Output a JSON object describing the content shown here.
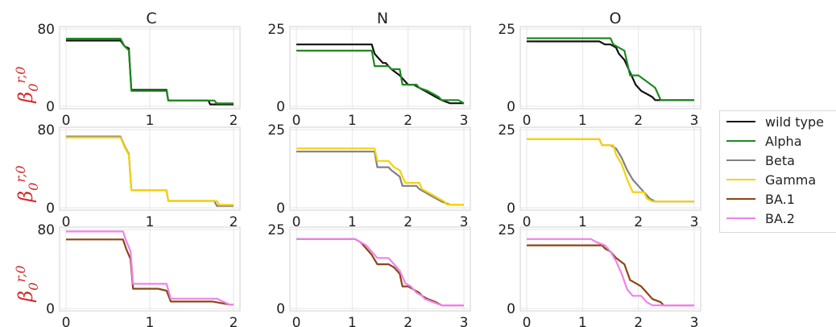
{
  "colors": {
    "wild type": "#111111",
    "Alpha": "#1e8a1e",
    "Beta": "#808080",
    "Gamma": "#f5d20a",
    "BA.1": "#8b4513",
    "BA.2": "#ee82ee",
    "ylabel": "#d62728"
  },
  "legend": {
    "entries": [
      "wild type",
      "Alpha",
      "Beta",
      "Gamma",
      "BA.1",
      "BA.2"
    ]
  },
  "column_titles": [
    "C",
    "N",
    "O"
  ],
  "chart_data": [
    {
      "type": "line",
      "row": 0,
      "col": 0,
      "title": "C",
      "ylabel": "β0^r,0",
      "xlim": [
        0,
        2
      ],
      "ylim": [
        0,
        80
      ],
      "xticks": [
        0,
        1,
        2
      ],
      "yticks": [
        0,
        80
      ],
      "grid": true,
      "series": [
        {
          "name": "wild type",
          "x": [
            0,
            0.65,
            0.7,
            0.75,
            0.78,
            1.2,
            1.22,
            1.7,
            1.72,
            2.0
          ],
          "y": [
            68,
            68,
            62,
            60,
            17,
            17,
            6,
            6,
            2,
            2
          ]
        },
        {
          "name": "Alpha",
          "x": [
            0,
            0.65,
            0.7,
            0.75,
            0.78,
            1.2,
            1.22,
            1.77,
            1.8,
            2.0
          ],
          "y": [
            70,
            70,
            62,
            58,
            16,
            16,
            6,
            6,
            3,
            3
          ]
        }
      ]
    },
    {
      "type": "line",
      "row": 0,
      "col": 1,
      "title": "N",
      "xlim": [
        0,
        3
      ],
      "ylim": [
        0,
        25
      ],
      "xticks": [
        0,
        1,
        2,
        3
      ],
      "yticks": [
        0,
        25
      ],
      "grid": true,
      "series": [
        {
          "name": "wild type",
          "x": [
            0,
            1.35,
            1.4,
            1.45,
            1.55,
            1.6,
            1.7,
            1.85,
            2.0,
            2.1,
            2.2,
            2.3,
            2.4,
            2.5,
            2.6,
            2.75,
            3.0
          ],
          "y": [
            20,
            20,
            17,
            16,
            14,
            14,
            12,
            10,
            7,
            7,
            6,
            5,
            4,
            3,
            2,
            1,
            1
          ]
        },
        {
          "name": "Alpha",
          "x": [
            0,
            1.35,
            1.4,
            1.65,
            1.7,
            1.85,
            1.9,
            2.15,
            2.2,
            2.35,
            2.45,
            2.55,
            2.6,
            2.9,
            3.0
          ],
          "y": [
            18,
            18,
            13,
            13,
            12,
            12,
            7,
            7,
            6,
            5,
            4,
            3,
            2,
            2,
            1
          ]
        }
      ]
    },
    {
      "type": "line",
      "row": 0,
      "col": 2,
      "title": "O",
      "xlim": [
        0,
        3
      ],
      "ylim": [
        0,
        25
      ],
      "xticks": [
        0,
        1,
        2,
        3
      ],
      "yticks": [
        0,
        25
      ],
      "grid": true,
      "series": [
        {
          "name": "wild type",
          "x": [
            0,
            1.3,
            1.4,
            1.5,
            1.6,
            1.65,
            1.75,
            1.85,
            1.95,
            2.05,
            2.15,
            2.25,
            2.3,
            2.7,
            3.0
          ],
          "y": [
            21,
            21,
            20,
            20,
            19,
            17,
            15,
            11,
            7,
            5,
            4,
            3,
            2,
            2,
            2
          ]
        },
        {
          "name": "Alpha",
          "x": [
            0,
            1.5,
            1.55,
            1.75,
            1.85,
            2.0,
            2.15,
            2.3,
            2.4,
            2.6,
            3.0
          ],
          "y": [
            22,
            22,
            20,
            18,
            10,
            10,
            8,
            6,
            2,
            2,
            2
          ]
        }
      ]
    },
    {
      "type": "line",
      "row": 1,
      "col": 0,
      "xlim": [
        0,
        2
      ],
      "ylim": [
        0,
        80
      ],
      "xticks": [
        0,
        1,
        2
      ],
      "yticks": [
        0,
        80
      ],
      "grid": true,
      "series": [
        {
          "name": "Beta",
          "x": [
            0,
            0.65,
            0.7,
            0.75,
            0.78,
            1.2,
            1.22,
            1.77,
            1.8,
            2.0
          ],
          "y": [
            73,
            73,
            63,
            55,
            18,
            18,
            7,
            7,
            2,
            2
          ]
        },
        {
          "name": "Gamma",
          "x": [
            0,
            0.65,
            0.7,
            0.75,
            0.78,
            1.2,
            1.22,
            1.8,
            1.83,
            2.0
          ],
          "y": [
            72,
            72,
            62,
            54,
            18,
            18,
            7,
            7,
            3,
            3
          ]
        }
      ]
    },
    {
      "type": "line",
      "row": 1,
      "col": 1,
      "xlim": [
        0,
        3
      ],
      "ylim": [
        0,
        25
      ],
      "xticks": [
        0,
        1,
        2,
        3
      ],
      "yticks": [
        0,
        25
      ],
      "grid": true,
      "series": [
        {
          "name": "Beta",
          "x": [
            0,
            1.4,
            1.45,
            1.65,
            1.7,
            1.85,
            1.9,
            2.15,
            2.2,
            2.3,
            2.4,
            2.5,
            2.6,
            2.75,
            3.0
          ],
          "y": [
            18,
            18,
            13,
            13,
            12,
            10,
            7,
            7,
            6,
            5,
            4,
            3,
            2,
            1,
            1
          ]
        },
        {
          "name": "Gamma",
          "x": [
            0,
            1.4,
            1.45,
            1.65,
            1.75,
            1.85,
            1.95,
            2.2,
            2.25,
            2.35,
            2.45,
            2.55,
            2.65,
            2.7,
            3.0
          ],
          "y": [
            19,
            19,
            15,
            15,
            13,
            12,
            8,
            8,
            6,
            5,
            4,
            3,
            2,
            1,
            1
          ]
        }
      ]
    },
    {
      "type": "line",
      "row": 1,
      "col": 2,
      "xlim": [
        0,
        3
      ],
      "ylim": [
        0,
        25
      ],
      "xticks": [
        0,
        1,
        2,
        3
      ],
      "yticks": [
        0,
        25
      ],
      "grid": true,
      "series": [
        {
          "name": "Beta",
          "x": [
            0,
            1.3,
            1.35,
            1.5,
            1.6,
            1.7,
            1.8,
            1.9,
            2.05,
            2.15,
            2.2,
            2.3,
            3.0
          ],
          "y": [
            22,
            22,
            20,
            20,
            19,
            16,
            12,
            9,
            6,
            4,
            3,
            2,
            2
          ]
        },
        {
          "name": "Gamma",
          "x": [
            0,
            1.3,
            1.35,
            1.55,
            1.6,
            1.7,
            1.8,
            1.9,
            2.1,
            2.15,
            2.25,
            3.0
          ],
          "y": [
            22,
            22,
            20,
            20,
            17,
            14,
            9,
            5,
            5,
            3,
            2,
            2
          ]
        }
      ]
    },
    {
      "type": "line",
      "row": 2,
      "col": 0,
      "xlim": [
        0,
        2
      ],
      "ylim": [
        0,
        80
      ],
      "xticks": [
        0,
        1,
        2
      ],
      "yticks": [
        0,
        80
      ],
      "grid": true,
      "series": [
        {
          "name": "BA.1",
          "x": [
            0,
            0.68,
            0.72,
            0.77,
            0.8,
            1.1,
            1.2,
            1.25,
            1.75,
            1.95,
            2.0
          ],
          "y": [
            70,
            70,
            60,
            50,
            20,
            20,
            18,
            7,
            7,
            4,
            4
          ]
        },
        {
          "name": "BA.2",
          "x": [
            0,
            0.68,
            0.72,
            0.77,
            0.8,
            1.2,
            1.25,
            1.8,
            1.95,
            2.0
          ],
          "y": [
            78,
            78,
            68,
            58,
            25,
            25,
            10,
            10,
            4,
            4
          ]
        }
      ]
    },
    {
      "type": "line",
      "row": 2,
      "col": 1,
      "xlim": [
        0,
        3
      ],
      "ylim": [
        0,
        25
      ],
      "xticks": [
        0,
        1,
        2,
        3
      ],
      "yticks": [
        0,
        25
      ],
      "grid": true,
      "series": [
        {
          "name": "BA.1",
          "x": [
            0,
            1.05,
            1.15,
            1.25,
            1.35,
            1.45,
            1.65,
            1.75,
            1.85,
            1.9,
            2.0,
            2.2,
            2.25,
            2.35,
            2.5,
            2.6,
            3.0
          ],
          "y": [
            22,
            22,
            21,
            19,
            17,
            14,
            14,
            13,
            11,
            7,
            7,
            5,
            4,
            3,
            2,
            1,
            1
          ]
        },
        {
          "name": "BA.2",
          "x": [
            0,
            1.05,
            1.15,
            1.25,
            1.3,
            1.45,
            1.65,
            1.75,
            1.85,
            1.95,
            2.05,
            2.15,
            2.25,
            2.3,
            2.45,
            2.6,
            3.0
          ],
          "y": [
            22,
            22,
            21,
            20,
            19,
            16,
            16,
            14,
            12,
            8,
            7,
            5,
            4,
            3,
            2,
            1,
            1
          ]
        }
      ]
    },
    {
      "type": "line",
      "row": 2,
      "col": 2,
      "xlim": [
        0,
        3
      ],
      "ylim": [
        0,
        25
      ],
      "xticks": [
        0,
        1,
        2,
        3
      ],
      "yticks": [
        0,
        25
      ],
      "grid": true,
      "series": [
        {
          "name": "BA.1",
          "x": [
            0,
            1.35,
            1.4,
            1.5,
            1.6,
            1.75,
            1.85,
            1.95,
            2.05,
            2.15,
            2.25,
            2.4,
            2.45,
            3.0
          ],
          "y": [
            20,
            20,
            19,
            18,
            16,
            14,
            9,
            8,
            7,
            5,
            3,
            2,
            1,
            1
          ]
        },
        {
          "name": "BA.2",
          "x": [
            0,
            1.15,
            1.25,
            1.4,
            1.5,
            1.6,
            1.7,
            1.8,
            1.9,
            2.05,
            2.15,
            2.25,
            3.0
          ],
          "y": [
            22,
            22,
            21,
            20,
            18,
            15,
            11,
            6,
            4,
            4,
            2,
            1,
            1
          ]
        }
      ]
    }
  ]
}
